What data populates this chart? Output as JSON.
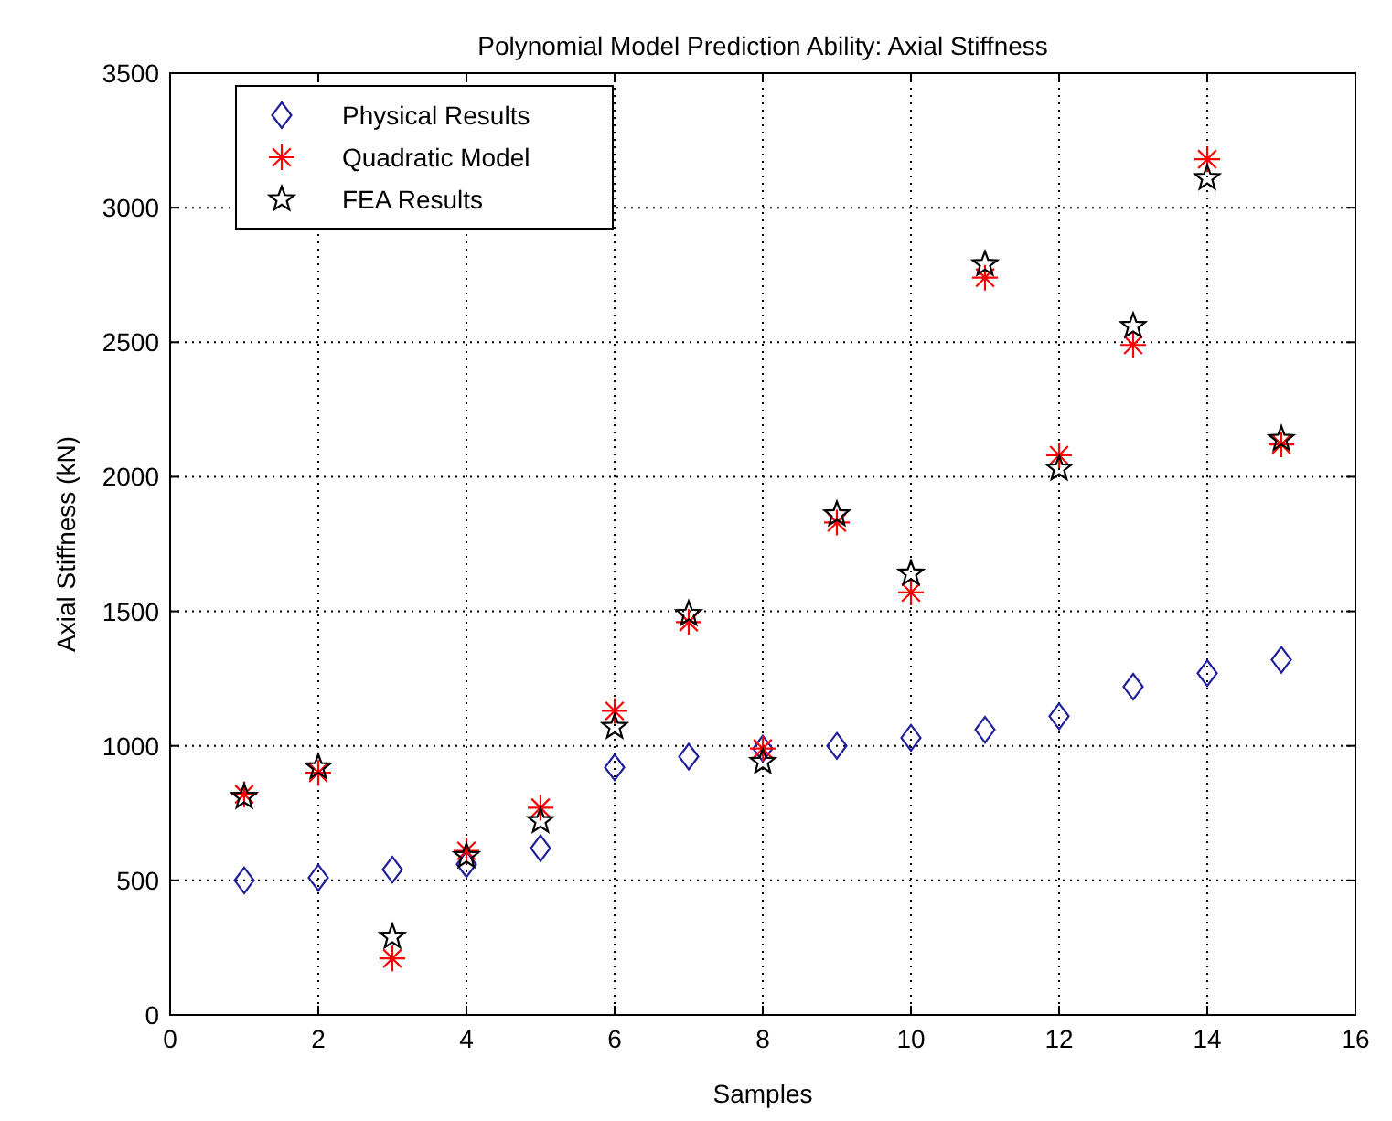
{
  "chart_data": {
    "type": "scatter",
    "title": "Polynomial Model Prediction Ability: Axial Stiffness",
    "xlabel": "Samples",
    "ylabel": "Axial Stiffness (kN)",
    "x": [
      1,
      2,
      3,
      4,
      5,
      6,
      7,
      8,
      9,
      10,
      11,
      12,
      13,
      14,
      15
    ],
    "series": [
      {
        "name": "Physical Results",
        "color": "#1f1f9c",
        "marker": "diamond",
        "values": [
          500,
          510,
          540,
          560,
          620,
          920,
          960,
          990,
          1000,
          1030,
          1060,
          1110,
          1220,
          1270,
          1320
        ]
      },
      {
        "name": "Quadratic Model",
        "color": "#ff0000",
        "marker": "cross",
        "values": [
          820,
          900,
          210,
          610,
          770,
          1130,
          1460,
          990,
          1830,
          1570,
          2740,
          2080,
          2490,
          3180,
          2120
        ]
      },
      {
        "name": "FEA Results",
        "color": "#000000",
        "marker": "star",
        "values": [
          810,
          920,
          290,
          590,
          720,
          1070,
          1490,
          940,
          1860,
          1640,
          2790,
          2030,
          2560,
          3110,
          2140
        ]
      }
    ],
    "xlim": [
      0,
      16
    ],
    "xticks": [
      0,
      2,
      4,
      6,
      8,
      10,
      12,
      14,
      16
    ],
    "ylim": [
      0,
      3500
    ],
    "yticks": [
      0,
      500,
      1000,
      1500,
      2000,
      2500,
      3000,
      3500
    ],
    "grid": true,
    "legend": "top left"
  }
}
